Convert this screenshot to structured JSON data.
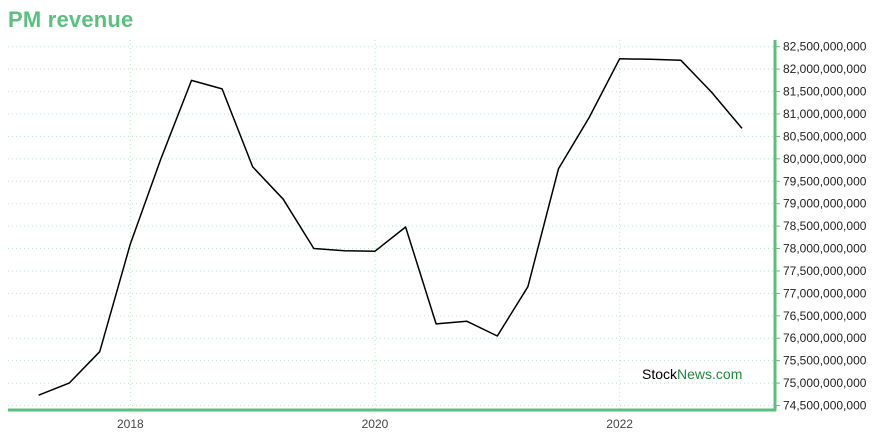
{
  "title": "PM revenue",
  "watermark": {
    "part1": "Stock",
    "part2": "News.com"
  },
  "colors": {
    "title": "#5bbf7f",
    "axis": "#5bbf7f",
    "grid": "#bfe3cc",
    "line": "#000000"
  },
  "chart_data": {
    "type": "line",
    "title": "PM revenue",
    "xlabel": "",
    "ylabel": "",
    "grid": true,
    "y_axis_side": "right",
    "xlim": [
      2017.0,
      2023.27
    ],
    "ylim": [
      74400000000,
      82650000000
    ],
    "x_ticks": [
      2018,
      2020,
      2022
    ],
    "x_tick_labels": [
      "2018",
      "2020",
      "2022"
    ],
    "y_ticks": [
      74500000000,
      75000000000,
      75500000000,
      76000000000,
      76500000000,
      77000000000,
      77500000000,
      78000000000,
      78500000000,
      79000000000,
      79500000000,
      80000000000,
      80500000000,
      81000000000,
      81500000000,
      82000000000,
      82500000000
    ],
    "y_tick_labels": [
      "74,500,000,000",
      "75,000,000,000",
      "75,500,000,000",
      "76,000,000,000",
      "76,500,000,000",
      "77,000,000,000",
      "77,500,000,000",
      "78,000,000,000",
      "78,500,000,000",
      "79,000,000,000",
      "79,500,000,000",
      "80,000,000,000",
      "80,500,000,000",
      "81,000,000,000",
      "81,500,000,000",
      "82,000,000,000",
      "82,500,000,000"
    ],
    "series": [
      {
        "x": [
          2017.25,
          2017.5,
          2017.75,
          2018.0,
          2018.25,
          2018.5,
          2018.75,
          2019.0,
          2019.25,
          2019.5,
          2019.75,
          2020.0,
          2020.25,
          2020.5,
          2020.75,
          2021.0,
          2021.25,
          2021.5,
          2021.75,
          2022.0,
          2022.25,
          2022.5,
          2022.75,
          2023.0
        ],
        "values": [
          74730000000,
          75000000000,
          75700000000,
          78100000000,
          80000000000,
          81750000000,
          81560000000,
          79820000000,
          79100000000,
          78000000000,
          77950000000,
          77940000000,
          78480000000,
          76320000000,
          76380000000,
          76050000000,
          77150000000,
          79780000000,
          80920000000,
          82230000000,
          82220000000,
          82200000000,
          81490000000,
          80680000000
        ]
      }
    ]
  }
}
